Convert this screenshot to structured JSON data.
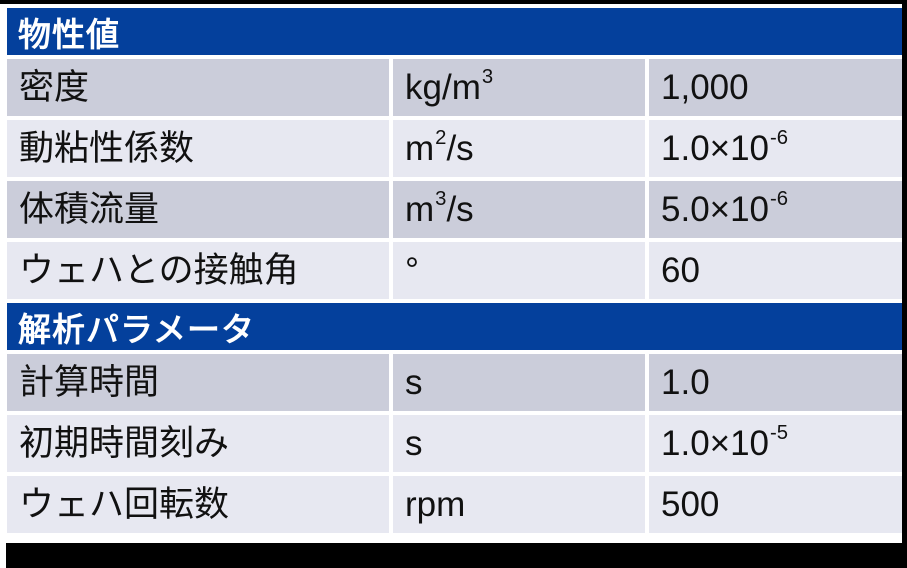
{
  "colors": {
    "header_blue": "#04409c",
    "band_dark": "#cbcdda",
    "band_light": "#e7e8f1",
    "frame_black": "#000000",
    "text": "#111111",
    "header_text": "#ffffff"
  },
  "table": {
    "sections": [
      {
        "title": "物性値",
        "rows": [
          {
            "label": "密度",
            "unit_pre": "kg/m",
            "unit_sup": "3",
            "unit_post": "",
            "value_pre": "1,000",
            "value_sup": ""
          },
          {
            "label": "動粘性係数",
            "unit_pre": "m",
            "unit_sup": "2",
            "unit_post": "/s",
            "value_pre": "1.0×10",
            "value_sup": "-6"
          },
          {
            "label": "体積流量",
            "unit_pre": "m",
            "unit_sup": "3",
            "unit_post": "/s",
            "value_pre": "5.0×10",
            "value_sup": "-6"
          },
          {
            "label": "ウェハとの接触角",
            "unit_pre": "°",
            "unit_sup": "",
            "unit_post": "",
            "value_pre": "60",
            "value_sup": ""
          }
        ]
      },
      {
        "title": "解析パラメータ",
        "rows": [
          {
            "label": "計算時間",
            "unit_pre": "s",
            "unit_sup": "",
            "unit_post": "",
            "value_pre": "1.0",
            "value_sup": ""
          },
          {
            "label": "初期時間刻み",
            "unit_pre": "s",
            "unit_sup": "",
            "unit_post": "",
            "value_pre": "1.0×10",
            "value_sup": "-5"
          },
          {
            "label": "ウェハ回転数",
            "unit_pre": "rpm",
            "unit_sup": "",
            "unit_post": "",
            "value_pre": "500",
            "value_sup": ""
          }
        ]
      }
    ]
  }
}
